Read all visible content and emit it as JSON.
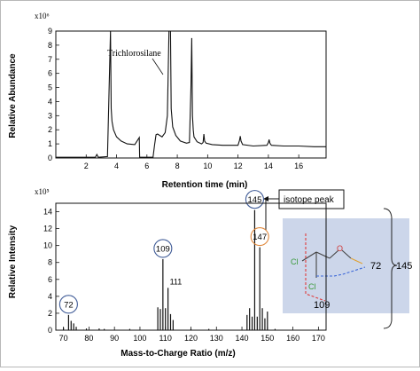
{
  "chart_data": [
    {
      "type": "line",
      "multiplier": "x10⁶",
      "xlabel": "Retention time (min)",
      "ylabel": "Relative Abundance",
      "xlim": [
        0,
        17.8
      ],
      "ylim": [
        0,
        9
      ],
      "xticks": [
        2,
        4,
        6,
        8,
        10,
        12,
        14,
        16
      ],
      "yticks": [
        0,
        1,
        2,
        3,
        4,
        5,
        6,
        7,
        8,
        9
      ],
      "annotation": "Trichlorosilane",
      "x": [
        0,
        2.6,
        2.7,
        2.8,
        3.4,
        3.6,
        3.65,
        3.7,
        3.8,
        4.0,
        4.3,
        4.7,
        5.2,
        5.5,
        5.52,
        5.6,
        6.4,
        6.5,
        6.6,
        6.7,
        7.0,
        7.2,
        7.35,
        7.45,
        7.5,
        7.55,
        7.6,
        7.7,
        7.9,
        8.2,
        8.6,
        8.8,
        8.9,
        8.95,
        9.0,
        9.05,
        9.1,
        9.3,
        9.6,
        9.7,
        9.75,
        9.8,
        9.9,
        10.3,
        11.0,
        12.0,
        12.1,
        12.15,
        12.2,
        12.3,
        13.0,
        13.9,
        14.0,
        14.05,
        14.1,
        14.2,
        15.0,
        16.0,
        17.0,
        17.8
      ],
      "y": [
        0.05,
        0.05,
        0.25,
        0.05,
        0.1,
        9.0,
        3.5,
        2.6,
        2.0,
        1.5,
        1.2,
        1.0,
        0.95,
        1.45,
        0.05,
        0.05,
        0.05,
        0.9,
        1.65,
        1.7,
        1.5,
        1.8,
        3.0,
        9.0,
        9.0,
        9.0,
        3.5,
        2.2,
        1.6,
        1.2,
        1.05,
        1.1,
        5.0,
        8.5,
        3.0,
        2.0,
        1.5,
        1.15,
        1.0,
        1.1,
        1.7,
        1.2,
        1.05,
        0.95,
        0.9,
        0.9,
        1.25,
        1.55,
        1.2,
        0.95,
        0.85,
        0.9,
        1.1,
        1.3,
        1.05,
        0.9,
        0.85,
        0.85,
        0.8,
        0.8
      ]
    },
    {
      "type": "bar",
      "multiplier": "x10⁵",
      "xlabel": "Mass-to-Charge Ratio (m/z)",
      "ylabel": "Relative Intensity",
      "xlim": [
        67,
        173
      ],
      "ylim": [
        0,
        15
      ],
      "xticks": [
        70,
        80,
        90,
        100,
        110,
        120,
        130,
        140,
        150,
        160,
        170
      ],
      "yticks": [
        0,
        2,
        4,
        6,
        8,
        10,
        12,
        14
      ],
      "x": [
        70,
        72,
        73,
        74,
        75,
        79,
        84,
        86,
        96,
        107,
        108,
        109,
        110,
        111,
        112,
        113,
        120,
        127,
        142,
        143,
        144,
        145,
        146,
        147,
        148,
        149,
        150,
        153
      ],
      "values": [
        0.3,
        1.8,
        1.1,
        0.8,
        0.4,
        0.2,
        0.2,
        0.15,
        0.15,
        2.7,
        2.5,
        8.4,
        2.6,
        5.0,
        1.9,
        1.2,
        0.15,
        0.15,
        1.8,
        2.6,
        1.6,
        14.2,
        1.6,
        9.8,
        2.6,
        1.4,
        2.2,
        0.15
      ],
      "peak_labels": [
        {
          "x": 72,
          "y": 1.8,
          "text": "72",
          "circled": true,
          "circle_color": "#3e5a96"
        },
        {
          "x": 109,
          "y": 8.4,
          "text": "109",
          "circled": true,
          "circle_color": "#3e5a96"
        },
        {
          "x": 111,
          "y": 5.0,
          "text": "111",
          "circled": false
        },
        {
          "x": 145,
          "y": 14.2,
          "text": "145",
          "circled": true,
          "circle_color": "#3e5a96"
        },
        {
          "x": 147,
          "y": 9.8,
          "text": "147",
          "circled": true,
          "circle_color": "#e0873a"
        }
      ],
      "callout": "isotope peak",
      "structure": {
        "atom_o": "O",
        "atom_cl_top": "Cl",
        "atom_cl_bottom": "Cl",
        "fragment_72": "72",
        "fragment_109": "109",
        "fragment_145": "145",
        "panel_color": "#ccd6ea",
        "cut_colors": {
          "red": "#e03a3a",
          "blue": "#3a66d8"
        }
      }
    }
  ]
}
